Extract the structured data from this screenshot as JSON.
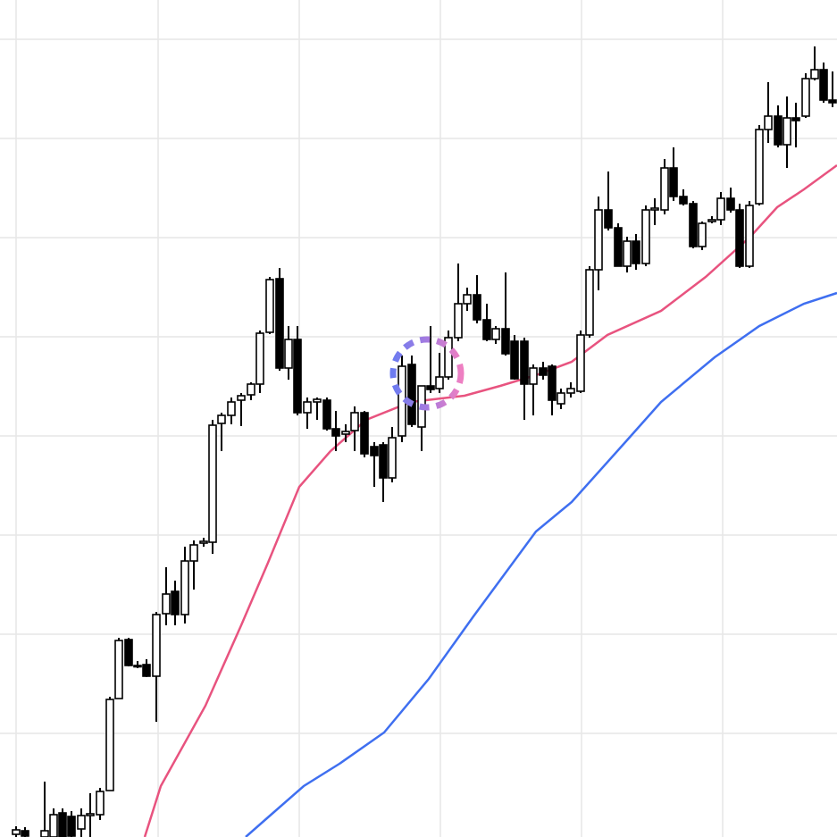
{
  "chart_data": {
    "type": "candlestick",
    "xlim": [
      0,
      937
    ],
    "ylim": [
      0,
      937
    ],
    "xticks": [
      18,
      177,
      335,
      493,
      651,
      809
    ],
    "yticks": [
      116,
      227,
      338,
      449,
      560,
      671,
      782,
      893
    ],
    "grid": true,
    "up_color": "#ffffff",
    "down_color": "#000000",
    "x": [
      18,
      28,
      50,
      60,
      70,
      80,
      91,
      101,
      112,
      123,
      133,
      144,
      154,
      164,
      175,
      186,
      196,
      207,
      217,
      228,
      238,
      248,
      259,
      270,
      281,
      291,
      302,
      313,
      323,
      333,
      344,
      355,
      366,
      376,
      387,
      397,
      408,
      419,
      429,
      439,
      450,
      461,
      472,
      482,
      492,
      502,
      513,
      523,
      534,
      545,
      555,
      566,
      576,
      587,
      597,
      608,
      618,
      628,
      639,
      650,
      660,
      670,
      681,
      692,
      702,
      712,
      723,
      733,
      744,
      754,
      765,
      776,
      786,
      797,
      807,
      818,
      828,
      839,
      850,
      860,
      871,
      881,
      891,
      902,
      912,
      922,
      932
    ],
    "open": [
      3,
      7,
      0,
      0,
      27,
      23,
      9,
      24,
      25,
      52,
      155,
      221,
      192,
      193,
      180,
      250,
      275,
      249,
      309,
      329,
      330,
      463,
      472,
      489,
      495,
      507,
      565,
      625,
      525,
      557,
      475,
      487,
      489,
      457,
      451,
      455,
      475,
      437,
      439,
      402,
      449,
      529,
      459,
      505,
      502,
      515,
      559,
      597,
      607,
      579,
      557,
      569,
      555,
      555,
      507,
      525,
      527,
      485,
      497,
      499,
      562,
      635,
      702,
      682,
      639,
      667,
      642,
      702,
      702,
      749,
      717,
      709,
      661,
      689,
      691,
      715,
      702,
      639,
      709,
      792,
      807,
      775,
      805,
      807,
      849,
      859,
      825
    ],
    "high": [
      12,
      11,
      62,
      32,
      32,
      29,
      32,
      49,
      55,
      157,
      223,
      223,
      197,
      199,
      252,
      302,
      287,
      325,
      332,
      335,
      467,
      475,
      492,
      497,
      509,
      567,
      627,
      637,
      572,
      572,
      492,
      492,
      492,
      477,
      462,
      482,
      477,
      442,
      442,
      459,
      539,
      539,
      505,
      572,
      542,
      567,
      642,
      615,
      629,
      597,
      572,
      632,
      562,
      559,
      529,
      532,
      529,
      502,
      509,
      567,
      639,
      717,
      745,
      687,
      672,
      675,
      707,
      715,
      759,
      772,
      725,
      712,
      689,
      695,
      722,
      727,
      709,
      712,
      797,
      845,
      819,
      829,
      822,
      855,
      885,
      867,
      857
    ],
    "low": [
      0,
      0,
      0,
      0,
      0,
      0,
      0,
      0,
      19,
      52,
      155,
      191,
      189,
      179,
      129,
      237,
      237,
      239,
      277,
      325,
      317,
      432,
      462,
      460,
      489,
      497,
      563,
      522,
      512,
      472,
      457,
      467,
      455,
      432,
      442,
      432,
      425,
      392,
      375,
      397,
      442,
      459,
      432,
      497,
      497,
      512,
      555,
      589,
      575,
      555,
      552,
      539,
      512,
      467,
      472,
      512,
      472,
      479,
      492,
      497,
      559,
      612,
      679,
      639,
      632,
      635,
      639,
      685,
      697,
      712,
      707,
      659,
      657,
      687,
      685,
      699,
      637,
      637,
      707,
      777,
      772,
      749,
      772,
      805,
      847,
      822,
      817
    ],
    "close": [
      8,
      1,
      7,
      25,
      0,
      1,
      24,
      26,
      51,
      154,
      220,
      192,
      191,
      180,
      249,
      272,
      249,
      309,
      327,
      331,
      461,
      472,
      487,
      494,
      507,
      564,
      624,
      525,
      557,
      475,
      487,
      490,
      457,
      449,
      454,
      475,
      429,
      427,
      402,
      447,
      527,
      462,
      505,
      501,
      515,
      559,
      597,
      607,
      579,
      557,
      569,
      541,
      513,
      507,
      525,
      517,
      489,
      497,
      502,
      562,
      635,
      702,
      682,
      639,
      667,
      642,
      702,
      704,
      749,
      717,
      709,
      661,
      687,
      691,
      715,
      702,
      639,
      707,
      792,
      807,
      775,
      805,
      802,
      849,
      859,
      825,
      822
    ],
    "lines": [
      {
        "color": "#e8537f",
        "x": [
          162,
          180,
          230,
          270,
          300,
          335,
          370,
          410,
          460,
          520,
          560,
          600,
          640,
          680,
          740,
          790,
          840,
          870,
          900,
          937
        ],
        "values": [
          0,
          57,
          147,
          237,
          307,
          392,
          432,
          467,
          487,
          494,
          505,
          517,
          532,
          562,
          589,
          627,
          672,
          705,
          725,
          752
        ]
      },
      {
        "color": "#3f6ff0",
        "x": [
          275,
          300,
          340,
          380,
          430,
          480,
          530,
          600,
          640,
          700,
          740,
          800,
          850,
          900,
          937
        ],
        "values": [
          0,
          22,
          57,
          82,
          117,
          177,
          247,
          342,
          375,
          442,
          487,
          537,
          572,
          597,
          609
        ]
      }
    ]
  }
}
